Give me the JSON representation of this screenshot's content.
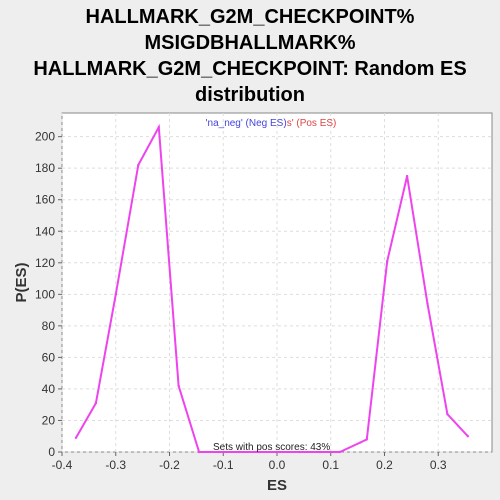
{
  "chart_data": {
    "type": "line",
    "title_lines": [
      "HALLMARK_G2M_CHECKPOINT%",
      "MSIGDBHALLMARK%",
      "HALLMARK_G2M_CHECKPOINT: Random ES",
      "distribution"
    ],
    "xlabel": "ES",
    "ylabel": "P(ES)",
    "xlim": [
      -0.4,
      0.4
    ],
    "ylim": [
      0,
      215
    ],
    "xticks": [
      -0.4,
      -0.3,
      -0.2,
      -0.1,
      0.0,
      0.1,
      0.2,
      0.3
    ],
    "xtick_labels": [
      "-0.4",
      "-0.3",
      "-0.2",
      "-0.1",
      "0.0",
      "0.1",
      "0.2",
      "0.3"
    ],
    "yticks": [
      0,
      20,
      40,
      60,
      80,
      100,
      120,
      140,
      160,
      180,
      200
    ],
    "grid": true,
    "legend": {
      "placement": "top-center",
      "neg_text": "'na_neg' (Neg ES)",
      "pos_text": "s' (Pos ES)",
      "neg_color": "#4444dd",
      "pos_color": "#dd4444"
    },
    "annotation": "Sets with pos scores: 43%",
    "line_color": "#ee44ee",
    "series": [
      {
        "x": [
          -0.374,
          -0.337,
          -0.3,
          -0.258,
          -0.22,
          -0.183,
          -0.145,
          -0.108,
          -0.07,
          -0.033,
          0.005,
          0.042,
          0.08,
          0.117,
          0.155,
          0.167,
          0.205,
          0.242,
          0.28,
          0.317,
          0.355
        ],
        "y": [
          9,
          31,
          100,
          182,
          206,
          42,
          0,
          0,
          0,
          0,
          0,
          0,
          0,
          0,
          6,
          8,
          121,
          175,
          94,
          24,
          10
        ]
      }
    ]
  }
}
